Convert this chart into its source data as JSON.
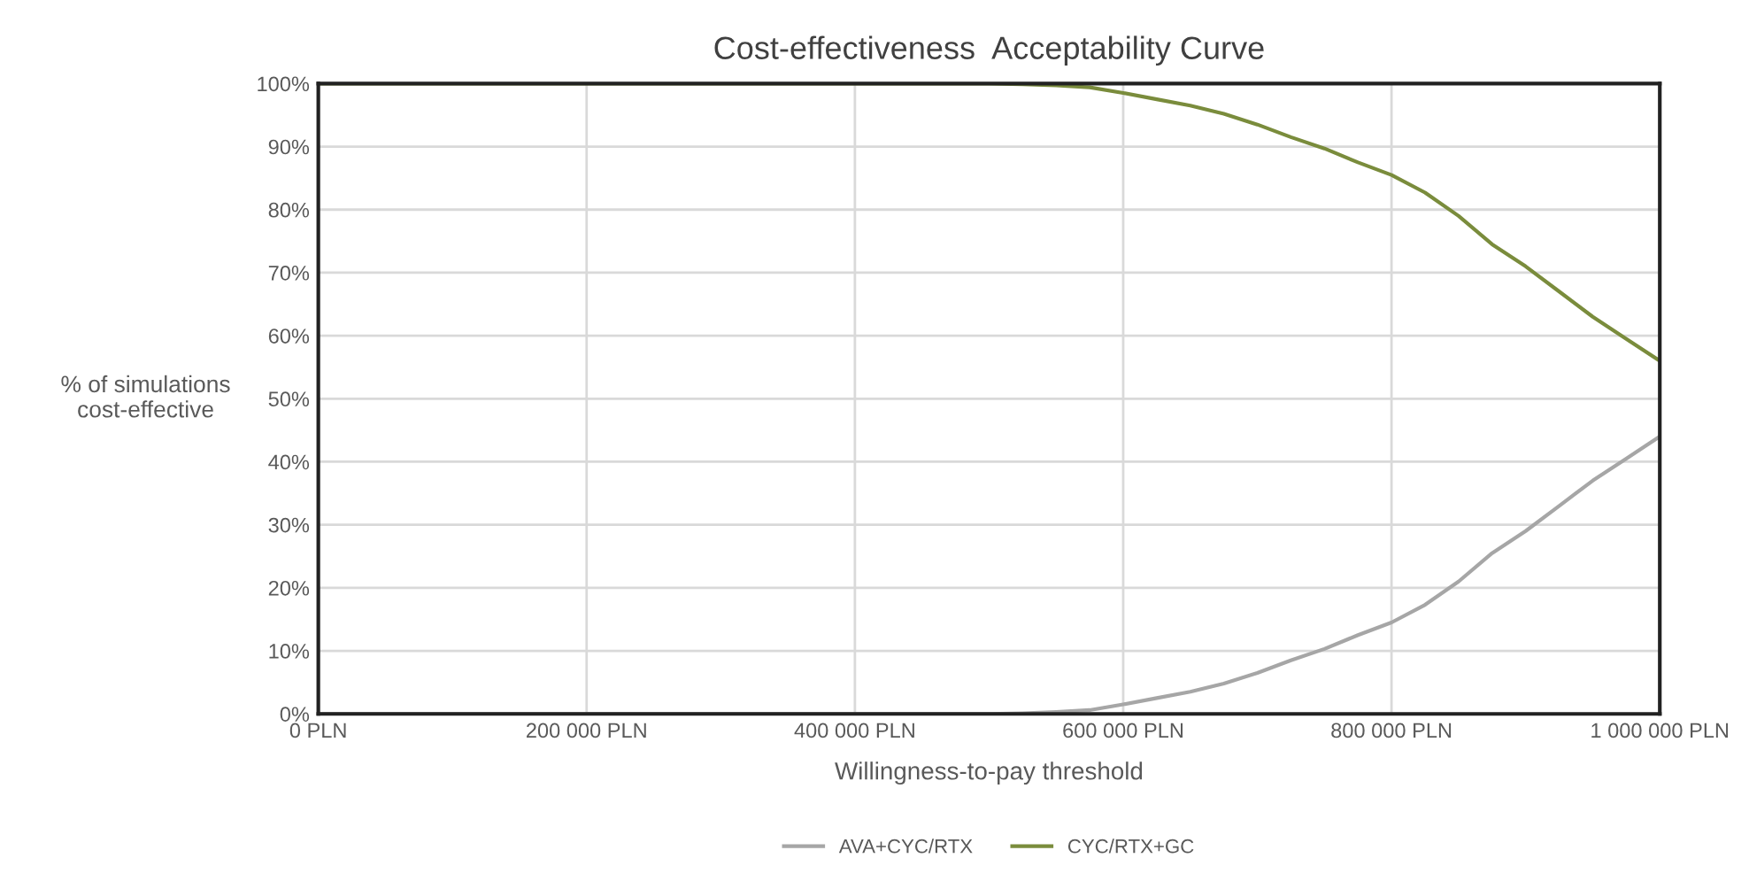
{
  "chart_data": {
    "type": "line",
    "title": "Cost-effectiveness  Acceptability Curve",
    "xlabel": "Willingness-to-pay threshold",
    "ylabel": "% of simulations\ncost-effective",
    "x": [
      0,
      100000,
      200000,
      300000,
      400000,
      500000,
      525000,
      550000,
      575000,
      600000,
      625000,
      650000,
      675000,
      700000,
      725000,
      750000,
      775000,
      800000,
      825000,
      850000,
      875000,
      900000,
      925000,
      950000,
      975000,
      1000000
    ],
    "series": [
      {
        "name": "AVA+CYC/RTX",
        "color": "#a6a6a6",
        "values": [
          0,
          0,
          0,
          0,
          0,
          0,
          0.1,
          0.3,
          0.6,
          1.5,
          2.5,
          3.5,
          4.8,
          6.5,
          8.5,
          10.3,
          12.5,
          14.5,
          17.3,
          21,
          25.5,
          29,
          33,
          37,
          40.5,
          44
        ]
      },
      {
        "name": "CYC/RTX+GC",
        "color": "#7a8c3c",
        "values": [
          100,
          100,
          100,
          100,
          100,
          100,
          99.9,
          99.7,
          99.4,
          98.5,
          97.5,
          96.5,
          95.2,
          93.5,
          91.5,
          89.7,
          87.5,
          85.5,
          82.7,
          79,
          74.5,
          71,
          67,
          63,
          59.5,
          56
        ]
      }
    ],
    "xlim": [
      0,
      1000000
    ],
    "ylim": [
      0,
      100
    ],
    "xticks": [
      {
        "value": 0,
        "label": "0 PLN"
      },
      {
        "value": 200000,
        "label": "200 000 PLN"
      },
      {
        "value": 400000,
        "label": "400 000 PLN"
      },
      {
        "value": 600000,
        "label": "600 000 PLN"
      },
      {
        "value": 800000,
        "label": "800 000 PLN"
      },
      {
        "value": 1000000,
        "label": "1 000 000 PLN"
      }
    ],
    "yticks": [
      {
        "value": 0,
        "label": "0%"
      },
      {
        "value": 10,
        "label": "10%"
      },
      {
        "value": 20,
        "label": "20%"
      },
      {
        "value": 30,
        "label": "30%"
      },
      {
        "value": 40,
        "label": "40%"
      },
      {
        "value": 50,
        "label": "50%"
      },
      {
        "value": 60,
        "label": "60%"
      },
      {
        "value": 70,
        "label": "70%"
      },
      {
        "value": 80,
        "label": "80%"
      },
      {
        "value": 90,
        "label": "90%"
      },
      {
        "value": 100,
        "label": "100%"
      }
    ],
    "grid": true,
    "legend": "bottom",
    "marker": "none",
    "line_style": "solid"
  }
}
